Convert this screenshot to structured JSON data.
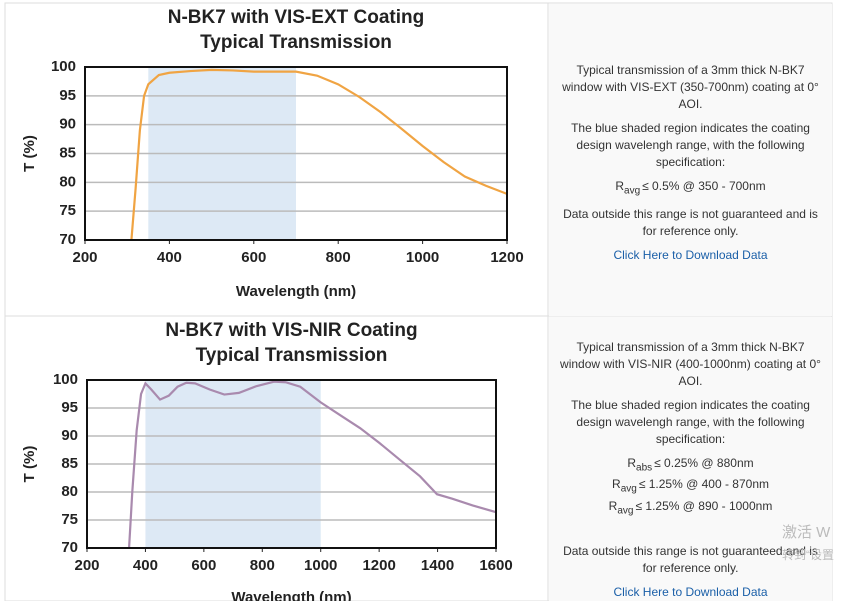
{
  "chart_data": [
    {
      "type": "line",
      "title": "N-BK7 with VIS-EXT Coating",
      "subtitle": "Typical Transmission",
      "x_label": "Wavelength (nm)",
      "y_label": "T (%)",
      "xlim": [
        200,
        1200
      ],
      "xticks": [
        200,
        400,
        600,
        800,
        1000,
        1200
      ],
      "ylim": [
        70,
        100
      ],
      "yticks": [
        70,
        75,
        80,
        85,
        90,
        95,
        100
      ],
      "grid": true,
      "shaded_range": [
        350,
        700
      ],
      "shade_color": "#dde9f5",
      "series": [
        {
          "color": "#f0a443",
          "x": [
            310,
            320,
            330,
            340,
            350,
            375,
            400,
            450,
            500,
            550,
            600,
            650,
            700,
            750,
            800,
            850,
            900,
            950,
            1000,
            1050,
            1100,
            1150,
            1200
          ],
          "values": [
            70,
            79,
            89,
            95,
            97,
            98.6,
            99,
            99.3,
            99.5,
            99.4,
            99.2,
            99.2,
            99.2,
            98.5,
            97,
            94.8,
            92.2,
            89.3,
            86.3,
            83.5,
            81,
            79.4,
            78
          ]
        }
      ]
    },
    {
      "type": "line",
      "title": "N-BK7 with VIS-NIR Coating",
      "subtitle": "Typical Transmission",
      "x_label": "Wavelength (nm)",
      "y_label": "T (%)",
      "xlim": [
        200,
        1600
      ],
      "xticks": [
        200,
        400,
        600,
        800,
        1000,
        1200,
        1400,
        1600
      ],
      "ylim": [
        70,
        100
      ],
      "yticks": [
        70,
        75,
        80,
        85,
        90,
        95,
        100
      ],
      "grid": true,
      "shaded_range": [
        400,
        1000
      ],
      "shade_color": "#dde9f5",
      "series": [
        {
          "color": "#a98aae",
          "x": [
            344,
            355,
            370,
            385,
            400,
            420,
            450,
            480,
            510,
            540,
            570,
            620,
            670,
            720,
            780,
            840,
            880,
            930,
            1000,
            1070,
            1135,
            1200,
            1272,
            1340,
            1398,
            1450,
            1520,
            1600
          ],
          "values": [
            70,
            80,
            91,
            97.5,
            99.4,
            98.3,
            96.5,
            97.2,
            98.8,
            99.5,
            99.4,
            98.3,
            97.4,
            97.7,
            98.9,
            99.7,
            99.6,
            98.8,
            96,
            93.6,
            91.4,
            88.8,
            85.7,
            82.8,
            79.6,
            78.8,
            77.6,
            76.4
          ]
        }
      ]
    }
  ],
  "panels": [
    {
      "description": "Typical transmission of a 3mm thick N-BK7 window with VIS-EXT (350-700nm) coating at 0° AOI.",
      "note": "The blue shaded region indicates the coating design wavelengh range, with the following specification:",
      "specs": [
        {
          "symbol": "R",
          "sub": "avg",
          "text": "≤ 0.5% @ 350 - 700nm"
        }
      ],
      "disclaimer": "Data outside this range is not guaranteed and is for reference only.",
      "link": "Click Here to Download Data"
    },
    {
      "description": "Typical transmission of a 3mm thick N-BK7 window with VIS-NIR (400-1000nm) coating at 0° AOI.",
      "note": "The blue shaded region indicates the coating design wavelengh range, with the following specification:",
      "specs": [
        {
          "symbol": "R",
          "sub": "abs",
          "text": "≤ 0.25% @ 880nm"
        },
        {
          "symbol": "R",
          "sub": "avg",
          "text": "≤ 1.25% @ 400 - 870nm"
        },
        {
          "symbol": "R",
          "sub": "avg",
          "text": "≤ 1.25% @ 890 - 1000nm"
        }
      ],
      "disclaimer": "Data outside this range is not guaranteed and is for reference only.",
      "link": "Click Here to Download Data"
    }
  ],
  "watermark": [
    "激活 W",
    "转到“设置"
  ]
}
